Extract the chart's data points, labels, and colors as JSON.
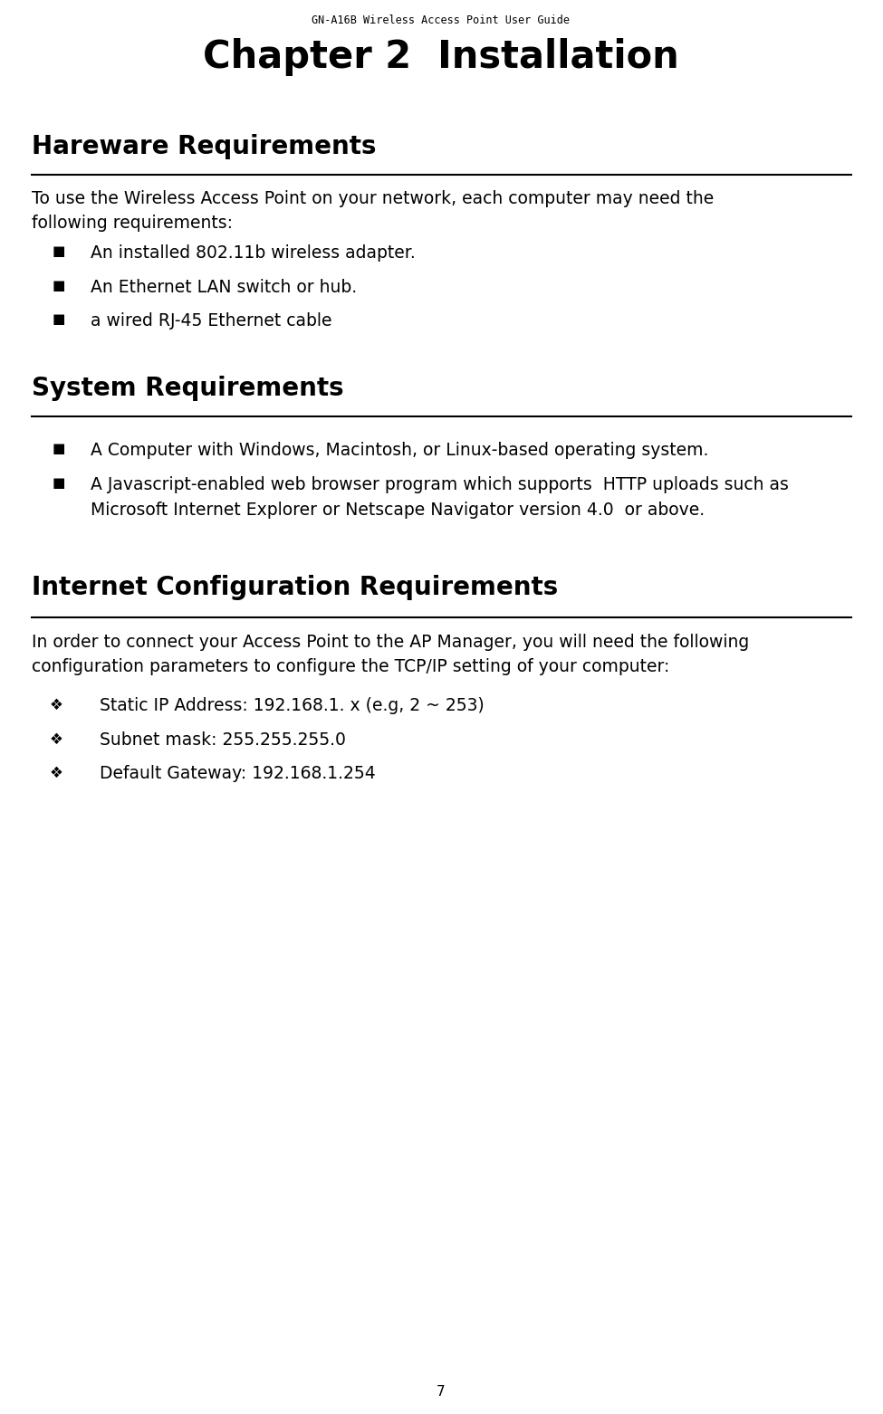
{
  "bg_color": "#ffffff",
  "header_text": "GN-A16B Wireless Access Point User Guide",
  "chapter_title": "Chapter 2  Installation",
  "section1_title": "Hareware Requirements",
  "section1_body_line1": "To use the Wireless Access Point on your network, each computer may need the",
  "section1_body_line2": "following requirements:",
  "section1_bullets": [
    "An installed 802.11b wireless adapter.",
    "An Ethernet LAN switch or hub.",
    "a wired RJ-45 Ethernet cable"
  ],
  "section2_title": "System Requirements",
  "section2_bullet1": "A Computer with Windows, Macintosh, or Linux-based operating system.",
  "section2_bullet2_line1": "A Javascript-enabled web browser program which supports  HTTP uploads such as",
  "section2_bullet2_line2": "Microsoft Internet Explorer or Netscape Navigator version 4.0  or above.",
  "section3_title": "Internet Configuration Requirements",
  "section3_body_line1": "In order to connect your Access Point to the AP Manager, you will need the following",
  "section3_body_line2": "configuration parameters to configure the TCP/IP setting of your computer:",
  "section3_bullets": [
    "Static IP Address: 192.168.1. x (e.g, 2 ~ 253)",
    "Subnet mask: 255.255.255.0",
    "Default Gateway: 192.168.1.254"
  ],
  "page_number": "7",
  "header_fontsize": 8.5,
  "chapter_fontsize": 30,
  "section_title_fontsize": 20,
  "body_fontsize": 13.5,
  "bullet_fontsize": 13.5,
  "bullet_symbol": "■",
  "diamond_symbol": "❖"
}
